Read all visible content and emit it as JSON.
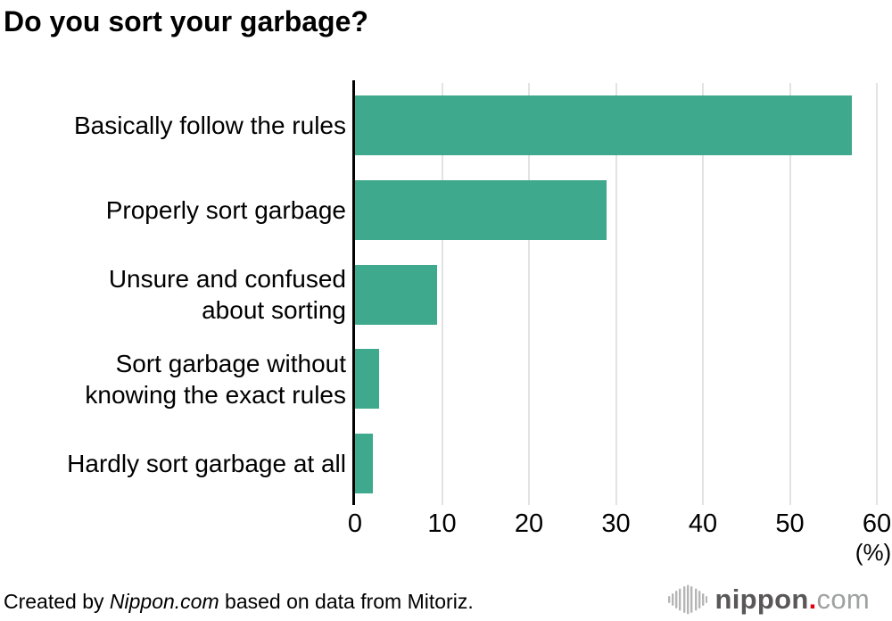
{
  "chart_data": {
    "type": "bar",
    "orientation": "horizontal",
    "title": "Do you sort your garbage?",
    "categories": [
      [
        "Basically follow the rules"
      ],
      [
        "Properly sort garbage"
      ],
      [
        "Unsure and confused",
        "about sorting"
      ],
      [
        "Sort garbage without",
        "knowing the exact rules"
      ],
      [
        "Hardly sort garbage at all"
      ]
    ],
    "values": [
      57.1,
      28.9,
      9.4,
      2.8,
      2.1
    ],
    "xlim": [
      0,
      60
    ],
    "xticks": [
      0,
      10,
      20,
      30,
      40,
      50,
      60
    ],
    "unit_label": "(%)",
    "grid": "vertical",
    "legend": "none",
    "colors": {
      "bar": "#3FA98D",
      "gridline": "#E3E3E3",
      "axis": "#000000",
      "text": "#000000"
    }
  },
  "footer": {
    "prefix": "Created by ",
    "brand": "Nippon.com",
    "suffix": " based on data from Mitoriz."
  },
  "logo": {
    "name": "nippon",
    "dot": ".",
    "tld": "com",
    "icon": "soundwave-bars-icon",
    "colors": {
      "icon": "#B5B5B6",
      "name": "#595757",
      "dot": "#E60012",
      "tld": "#9FA0A0"
    }
  }
}
